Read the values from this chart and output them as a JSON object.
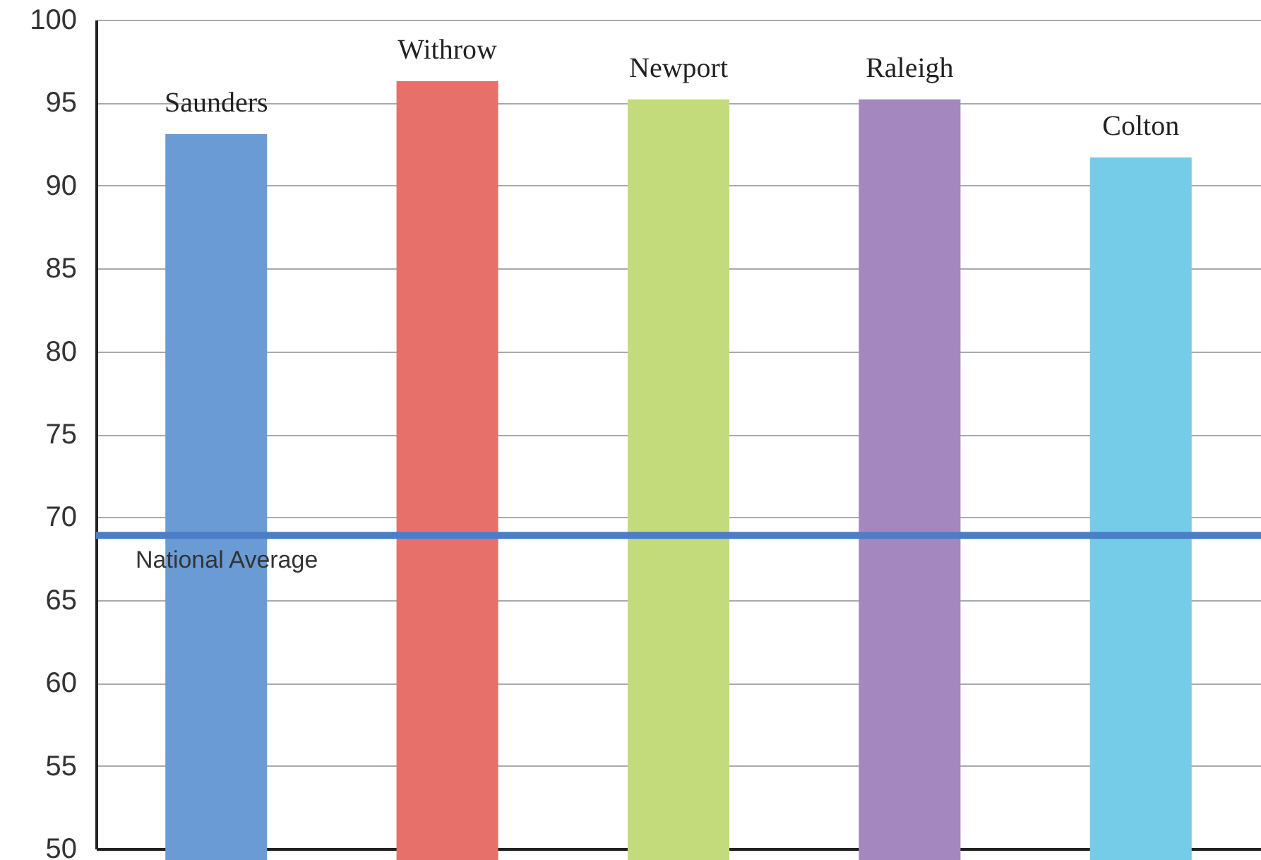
{
  "chart_data": {
    "type": "bar",
    "categories": [
      "Saunders",
      "Withrow",
      "Newport",
      "Raleigh",
      "Colton"
    ],
    "values": [
      93.1,
      96.3,
      95.2,
      95.2,
      91.7
    ],
    "colors": [
      "#6a9bd4",
      "#e8706a",
      "#c4db7c",
      "#a487bf",
      "#74cce8"
    ],
    "ylim": [
      50,
      100
    ],
    "yticks": [
      50,
      55,
      60,
      65,
      70,
      75,
      80,
      85,
      90,
      95,
      100
    ],
    "grid": "y",
    "tick_labels": "y",
    "ref_lines": [
      {
        "axis": "y",
        "value": 68.9,
        "label": "National Average",
        "color": "#4a7fc8"
      }
    ]
  }
}
